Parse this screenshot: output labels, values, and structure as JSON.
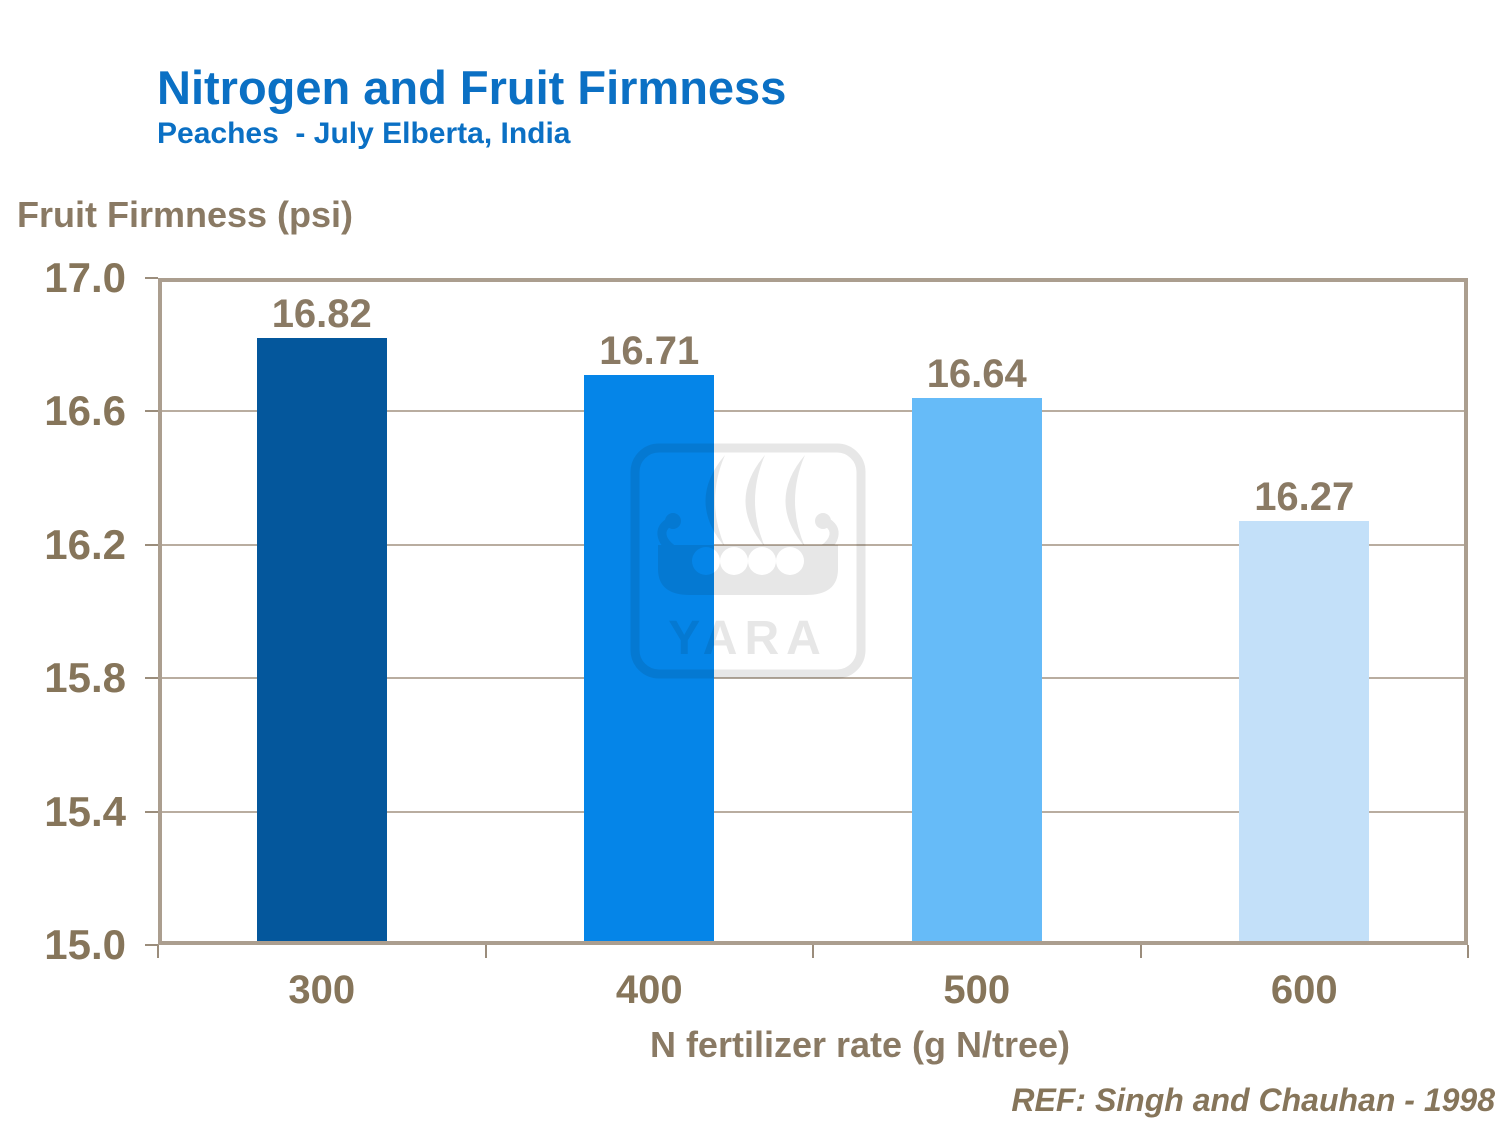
{
  "chart_data": {
    "type": "bar",
    "title": "Nitrogen and Fruit Firmness",
    "subtitle": "Peaches  - July Elberta, India",
    "ylabel": "Fruit Firmness (psi)",
    "xlabel": "N fertilizer rate (g N/tree)",
    "categories": [
      "300",
      "400",
      "500",
      "600"
    ],
    "values": [
      16.82,
      16.71,
      16.64,
      16.27
    ],
    "value_labels": [
      "16.82",
      "16.71",
      "16.64",
      "16.27"
    ],
    "bar_colors": [
      "#04579c",
      "#0585e8",
      "#66bbf8",
      "#c3e0f9"
    ],
    "ylim": [
      15.0,
      17.0
    ],
    "yticks": [
      17.0,
      16.6,
      16.2,
      15.8,
      15.4,
      15.0
    ],
    "ytick_labels": [
      "17.0",
      "16.6",
      "16.2",
      "15.8",
      "15.4",
      "15.0"
    ],
    "grid": true,
    "legend": "none",
    "reference": "REF: Singh and Chauhan - 1998"
  },
  "watermark": {
    "text": "YARA",
    "color": "#e7e7e7"
  },
  "colors": {
    "title": "#0b70c4",
    "axis_text": "#86755a",
    "data_label": "#8a7a64",
    "frame": "#ab9e8f",
    "gridline": "#b9ada0",
    "tick": "#9b8d7c"
  }
}
